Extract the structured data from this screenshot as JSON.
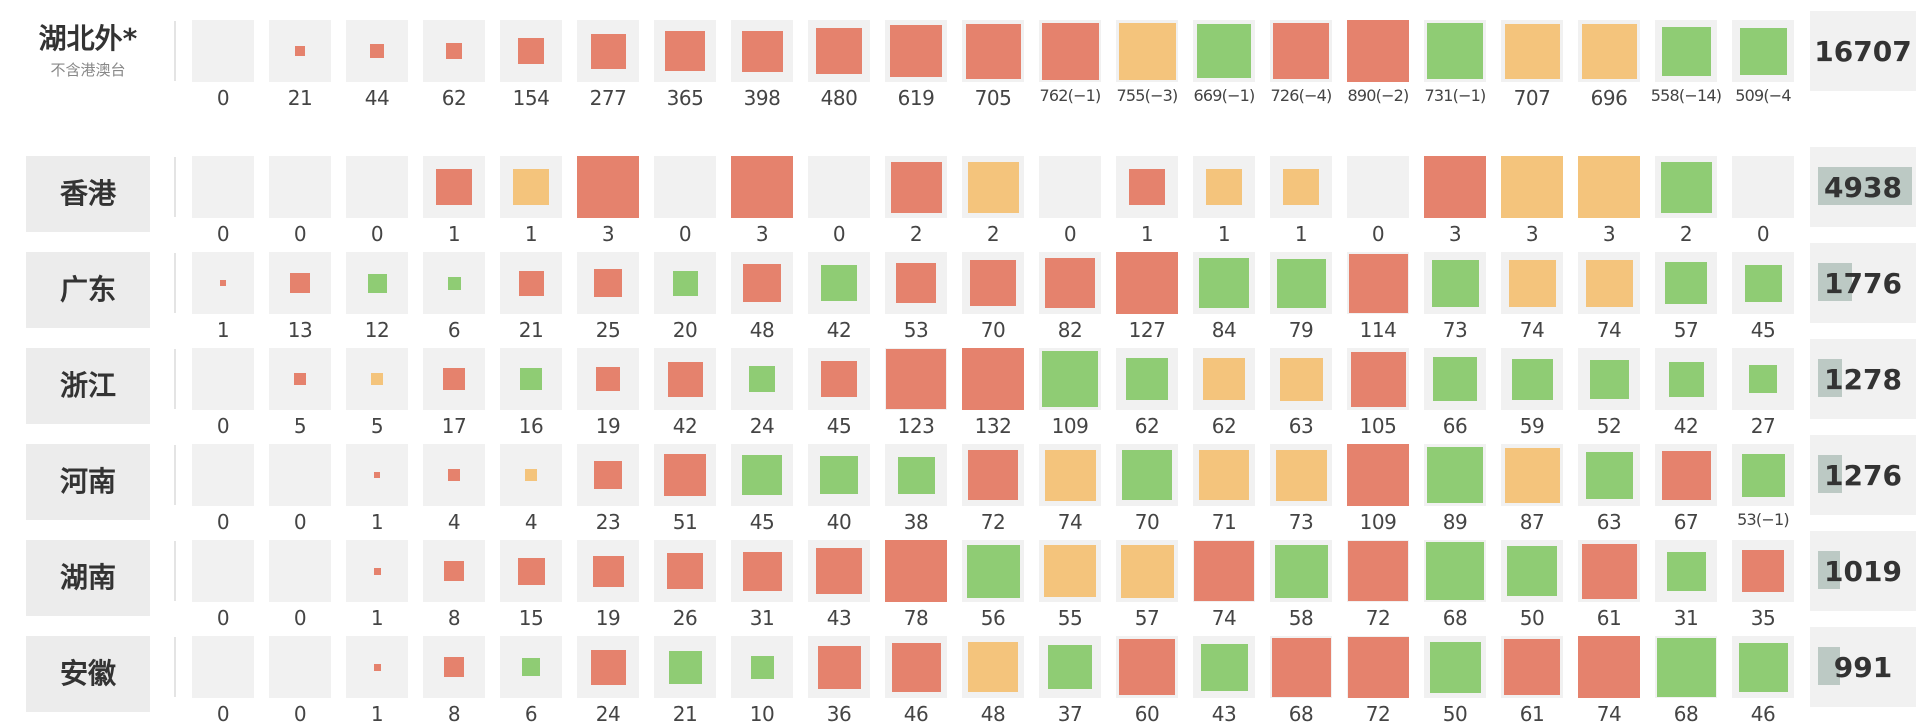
{
  "chart_data": {
    "type": "heatmap",
    "marker": "square (area encodes daily count)",
    "colors": {
      "red": "#e5826d",
      "green": "#8fcc74",
      "yellow": "#f4c47c",
      "empty": "#f1f1f1",
      "total_bar": "#bcc9c4"
    },
    "rows": [
      {
        "label": "湖北外*",
        "sublabel": "不含港澳台",
        "total": 16707,
        "values": [
          0,
          21,
          44,
          62,
          154,
          277,
          365,
          398,
          480,
          619,
          705,
          762,
          755,
          669,
          726,
          890,
          731,
          707,
          696,
          558,
          509
        ],
        "labels": [
          "0",
          "21",
          "44",
          "62",
          "154",
          "277",
          "365",
          "398",
          "480",
          "619",
          "705",
          "762(−1)",
          "755(−3)",
          "669(−1)",
          "726(−4)",
          "890(−2)",
          "731(−1)",
          "707",
          "696",
          "558(−14)",
          "509(−4"
        ],
        "colors": [
          "empty",
          "red",
          "red",
          "red",
          "red",
          "red",
          "red",
          "red",
          "red",
          "red",
          "red",
          "red",
          "yellow",
          "green",
          "red",
          "red",
          "green",
          "yellow",
          "yellow",
          "green",
          "green"
        ]
      },
      {
        "label": "香港",
        "total": 4938,
        "values": [
          0,
          0,
          0,
          1,
          1,
          3,
          0,
          3,
          0,
          2,
          2,
          0,
          1,
          1,
          1,
          0,
          3,
          3,
          3,
          2,
          0
        ],
        "labels": [
          "0",
          "0",
          "0",
          "1",
          "1",
          "3",
          "0",
          "3",
          "0",
          "2",
          "2",
          "0",
          "1",
          "1",
          "1",
          "0",
          "3",
          "3",
          "3",
          "2",
          "0"
        ],
        "colors": [
          "empty",
          "empty",
          "empty",
          "red",
          "yellow",
          "red",
          "empty",
          "red",
          "empty",
          "red",
          "yellow",
          "empty",
          "red",
          "yellow",
          "yellow",
          "empty",
          "red",
          "yellow",
          "yellow",
          "green",
          "empty"
        ]
      },
      {
        "label": "广东",
        "total": 1776,
        "values": [
          1,
          13,
          12,
          6,
          21,
          25,
          20,
          48,
          42,
          53,
          70,
          82,
          127,
          84,
          79,
          114,
          73,
          74,
          74,
          57,
          45
        ],
        "labels": [
          "1",
          "13",
          "12",
          "6",
          "21",
          "25",
          "20",
          "48",
          "42",
          "53",
          "70",
          "82",
          "127",
          "84",
          "79",
          "114",
          "73",
          "74",
          "74",
          "57",
          "45"
        ],
        "colors": [
          "red",
          "red",
          "green",
          "green",
          "red",
          "red",
          "green",
          "red",
          "green",
          "red",
          "red",
          "red",
          "red",
          "green",
          "green",
          "red",
          "green",
          "yellow",
          "yellow",
          "green",
          "green"
        ]
      },
      {
        "label": "浙江",
        "total": 1278,
        "values": [
          0,
          5,
          5,
          17,
          16,
          19,
          42,
          24,
          45,
          123,
          132,
          109,
          62,
          62,
          63,
          105,
          66,
          59,
          52,
          42,
          27
        ],
        "labels": [
          "0",
          "5",
          "5",
          "17",
          "16",
          "19",
          "42",
          "24",
          "45",
          "123",
          "132",
          "109",
          "62",
          "62",
          "63",
          "105",
          "66",
          "59",
          "52",
          "42",
          "27"
        ],
        "colors": [
          "empty",
          "red",
          "yellow",
          "red",
          "green",
          "red",
          "red",
          "green",
          "red",
          "red",
          "red",
          "green",
          "green",
          "yellow",
          "yellow",
          "red",
          "green",
          "green",
          "green",
          "green",
          "green"
        ]
      },
      {
        "label": "河南",
        "total": 1276,
        "values": [
          0,
          0,
          1,
          4,
          4,
          23,
          51,
          45,
          40,
          38,
          72,
          74,
          70,
          71,
          73,
          109,
          89,
          87,
          63,
          67,
          53
        ],
        "labels": [
          "0",
          "0",
          "1",
          "4",
          "4",
          "23",
          "51",
          "45",
          "40",
          "38",
          "72",
          "74",
          "70",
          "71",
          "73",
          "109",
          "89",
          "87",
          "63",
          "67",
          "53(−1)"
        ],
        "colors": [
          "empty",
          "empty",
          "red",
          "red",
          "yellow",
          "red",
          "red",
          "green",
          "green",
          "green",
          "red",
          "yellow",
          "green",
          "yellow",
          "yellow",
          "red",
          "green",
          "yellow",
          "green",
          "red",
          "green"
        ]
      },
      {
        "label": "湖南",
        "total": 1019,
        "values": [
          0,
          0,
          1,
          8,
          15,
          19,
          26,
          31,
          43,
          78,
          56,
          55,
          57,
          74,
          58,
          72,
          68,
          50,
          61,
          31,
          35
        ],
        "labels": [
          "0",
          "0",
          "1",
          "8",
          "15",
          "19",
          "26",
          "31",
          "43",
          "78",
          "56",
          "55",
          "57",
          "74",
          "58",
          "72",
          "68",
          "50",
          "61",
          "31",
          "35"
        ],
        "colors": [
          "empty",
          "empty",
          "red",
          "red",
          "red",
          "red",
          "red",
          "red",
          "red",
          "red",
          "green",
          "yellow",
          "yellow",
          "red",
          "green",
          "red",
          "green",
          "green",
          "red",
          "green",
          "red"
        ]
      },
      {
        "label": "安徽",
        "total": 991,
        "values": [
          0,
          0,
          1,
          8,
          6,
          24,
          21,
          10,
          36,
          46,
          48,
          37,
          60,
          43,
          68,
          72,
          50,
          61,
          74,
          68,
          46
        ],
        "labels": [
          "0",
          "0",
          "1",
          "8",
          "6",
          "24",
          "21",
          "10",
          "36",
          "46",
          "48",
          "37",
          "60",
          "43",
          "68",
          "72",
          "50",
          "61",
          "74",
          "68",
          "46"
        ],
        "colors": [
          "empty",
          "empty",
          "red",
          "red",
          "green",
          "red",
          "green",
          "green",
          "red",
          "red",
          "yellow",
          "green",
          "red",
          "green",
          "red",
          "red",
          "green",
          "red",
          "red",
          "green",
          "green"
        ]
      }
    ]
  }
}
